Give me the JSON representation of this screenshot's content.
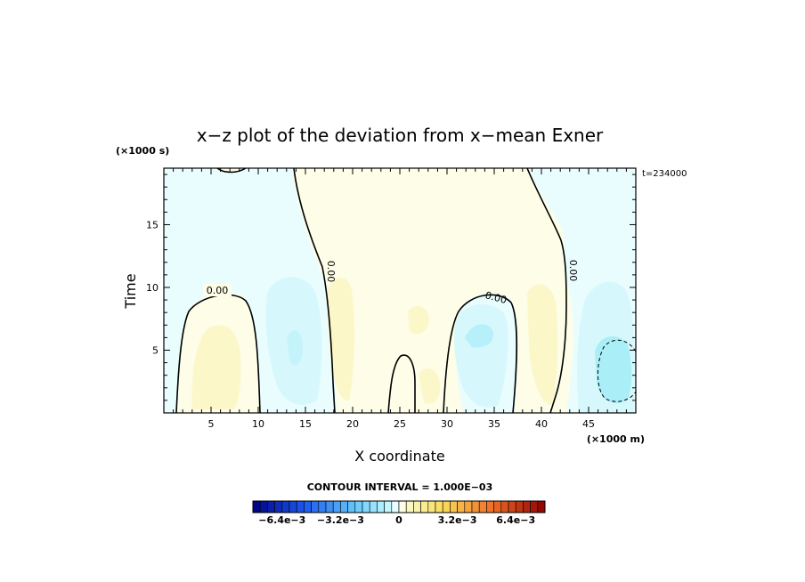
{
  "chart_data": {
    "type": "heatmap",
    "title": "x−z plot of the deviation from x−mean Exner",
    "xlabel": "X coordinate",
    "ylabel": "Time",
    "x_unit": "(×1000 m)",
    "y_unit": "(×1000 s)",
    "time_label": "t=234000",
    "xlim": [
      0,
      50
    ],
    "ylim": [
      0,
      19.5
    ],
    "x_ticks": [
      5,
      10,
      15,
      20,
      25,
      30,
      35,
      40,
      45
    ],
    "y_ticks": [
      5,
      10,
      15
    ],
    "contour_interval_label": "CONTOUR INTERVAL = 1.000E−03",
    "contour_labels": [
      "0.00",
      "0.00",
      "0.00",
      "0.00"
    ],
    "colorbar": {
      "tick_labels": [
        "−6.4e−3",
        "−3.2e−3",
        "0",
        "3.2e−3",
        "6.4e−3"
      ],
      "tick_values": [
        -0.0064,
        -0.0032,
        0,
        0.0032,
        0.0064
      ],
      "range": [
        -0.008,
        0.008
      ]
    },
    "grid": false
  }
}
